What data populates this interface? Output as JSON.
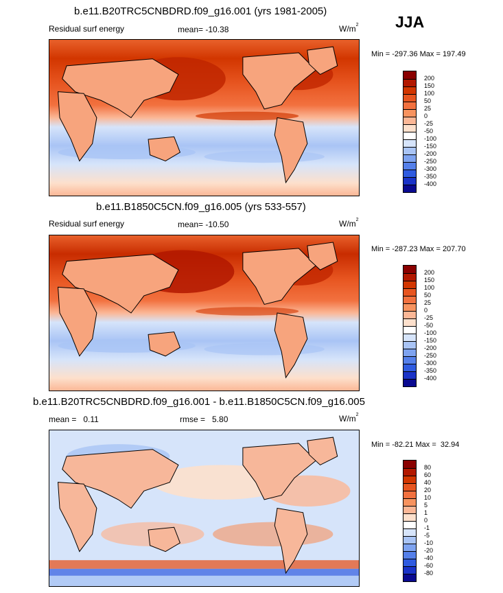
{
  "season": "JJA",
  "units": "W/m",
  "units_sup": "2",
  "panels": [
    {
      "id": "model1",
      "title": "b.e11.B20TRC5CNBDRD.f09_g16.001 (yrs 1981-2005)",
      "left_label": "Residual surf energy",
      "center_label": "mean= -10.38",
      "minmax": "Min = -297.36 Max = 197.49",
      "colorbar_labels": [
        "200",
        "150",
        "100",
        "50",
        "25",
        "0",
        "-25",
        "-50",
        "-100",
        "-150",
        "-200",
        "-250",
        "-300",
        "-350",
        "-400"
      ],
      "colorbar_colors": [
        "#8a0000",
        "#b21800",
        "#d23600",
        "#e75520",
        "#f2713f",
        "#f7935f",
        "#fbb796",
        "#fde0cc",
        "#ffffff",
        "#d6e4fa",
        "#a9c4f5",
        "#7ea3f0",
        "#5580ea",
        "#2f5be0",
        "#1a33c8",
        "#0a0a90"
      ]
    },
    {
      "id": "model2",
      "title": "b.e11.B1850C5CN.f09_g16.005 (yrs 533-557)",
      "left_label": "Residual surf energy",
      "center_label": "mean= -10.50",
      "minmax": "Min = -287.23 Max = 207.70",
      "colorbar_labels": [
        "200",
        "150",
        "100",
        "50",
        "25",
        "0",
        "-25",
        "-50",
        "-100",
        "-150",
        "-200",
        "-250",
        "-300",
        "-350",
        "-400"
      ],
      "colorbar_colors": [
        "#8a0000",
        "#b21800",
        "#d23600",
        "#e75520",
        "#f2713f",
        "#f7935f",
        "#fbb796",
        "#fde0cc",
        "#ffffff",
        "#d6e4fa",
        "#a9c4f5",
        "#7ea3f0",
        "#5580ea",
        "#2f5be0",
        "#1a33c8",
        "#0a0a90"
      ]
    },
    {
      "id": "diff",
      "title": "b.e11.B20TRC5CNBDRD.f09_g16.001 - b.e11.B1850C5CN.f09_g16.005",
      "left_label": "mean =   0.11",
      "center_label": "rmse =   5.80",
      "minmax": "Min = -82.21 Max =  32.94",
      "colorbar_labels": [
        "80",
        "60",
        "40",
        "20",
        "10",
        "5",
        "1",
        "0",
        "-1",
        "-5",
        "-10",
        "-20",
        "-40",
        "-60",
        "-80"
      ],
      "colorbar_colors": [
        "#8a0000",
        "#b21800",
        "#d23600",
        "#e75520",
        "#f2713f",
        "#f7935f",
        "#fbb796",
        "#fde0cc",
        "#ffffff",
        "#d6e4fa",
        "#a9c4f5",
        "#7ea3f0",
        "#5580ea",
        "#2f5be0",
        "#1a33c8",
        "#0a0a90"
      ]
    }
  ]
}
